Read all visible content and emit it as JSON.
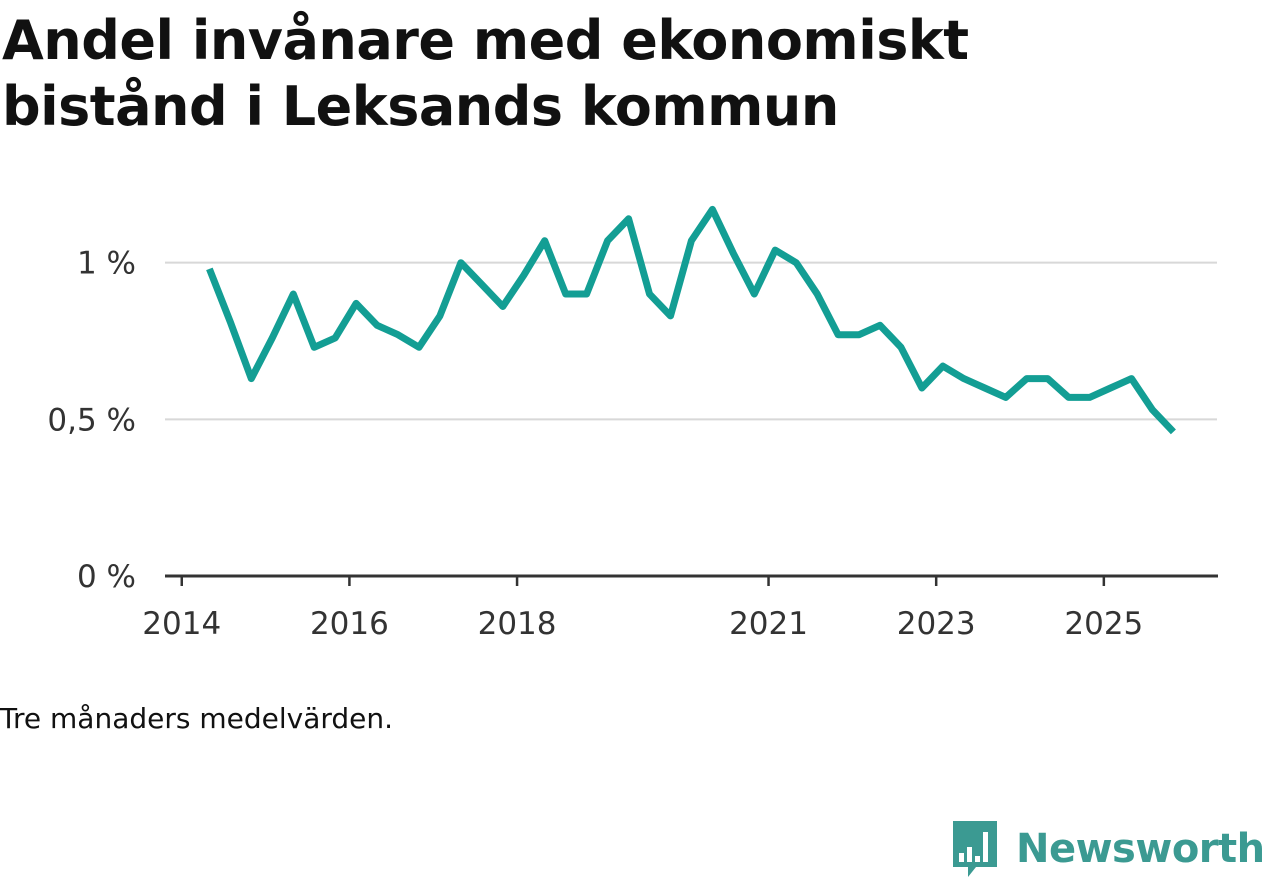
{
  "title": "Andel invånare med ekonomiskt bistånd i Leksands kommun",
  "caption": "Tre månaders medelvärden.",
  "logo": {
    "text": "Newsworthy",
    "icon": "bar-chart-speech-bubble-icon",
    "color": "#3b9a92"
  },
  "colors": {
    "line": "#139e94",
    "grid": "#d8d8d8",
    "axis": "#333333"
  },
  "chart_data": {
    "type": "line",
    "title": "Andel invånare med ekonomiskt bistånd i Leksands kommun",
    "xlabel": "",
    "ylabel": "",
    "ylim": [
      0,
      1.2
    ],
    "xlim": [
      2013.8,
      2026.35
    ],
    "y_ticks": [
      {
        "value": 0,
        "label": "0 %"
      },
      {
        "value": 0.5,
        "label": "0,5 %"
      },
      {
        "value": 1,
        "label": "1 %"
      }
    ],
    "x_ticks": [
      {
        "value": 2014,
        "label": "2014"
      },
      {
        "value": 2016,
        "label": "2016"
      },
      {
        "value": 2018,
        "label": "2018"
      },
      {
        "value": 2021,
        "label": "2021"
      },
      {
        "value": 2023,
        "label": "2023"
      },
      {
        "value": 2025,
        "label": "2025"
      }
    ],
    "grid": true,
    "series": [
      {
        "name": "Andel invånare med ekonomiskt bistånd",
        "x": [
          2014.33,
          2014.58,
          2014.83,
          2015.08,
          2015.33,
          2015.58,
          2015.83,
          2016.08,
          2016.33,
          2016.58,
          2016.83,
          2017.08,
          2017.33,
          2017.58,
          2017.83,
          2018.08,
          2018.33,
          2018.58,
          2018.83,
          2019.08,
          2019.33,
          2019.58,
          2019.83,
          2020.08,
          2020.33,
          2020.58,
          2020.83,
          2021.08,
          2021.33,
          2021.58,
          2021.83,
          2022.08,
          2022.33,
          2022.58,
          2022.83,
          2023.08,
          2023.33,
          2023.58,
          2023.83,
          2024.08,
          2024.33,
          2024.58,
          2024.83,
          2025.08,
          2025.33,
          2025.58,
          2025.83
        ],
        "values": [
          0.98,
          0.81,
          0.63,
          0.76,
          0.9,
          0.73,
          0.76,
          0.87,
          0.8,
          0.77,
          0.73,
          0.83,
          1.0,
          0.93,
          0.86,
          0.96,
          1.07,
          0.9,
          0.9,
          1.07,
          1.14,
          0.9,
          0.83,
          1.07,
          1.17,
          1.03,
          0.9,
          1.04,
          1.0,
          0.9,
          0.77,
          0.77,
          0.8,
          0.73,
          0.6,
          0.67,
          0.63,
          0.6,
          0.57,
          0.63,
          0.63,
          0.57,
          0.57,
          0.6,
          0.63,
          0.53,
          0.46
        ]
      }
    ]
  }
}
